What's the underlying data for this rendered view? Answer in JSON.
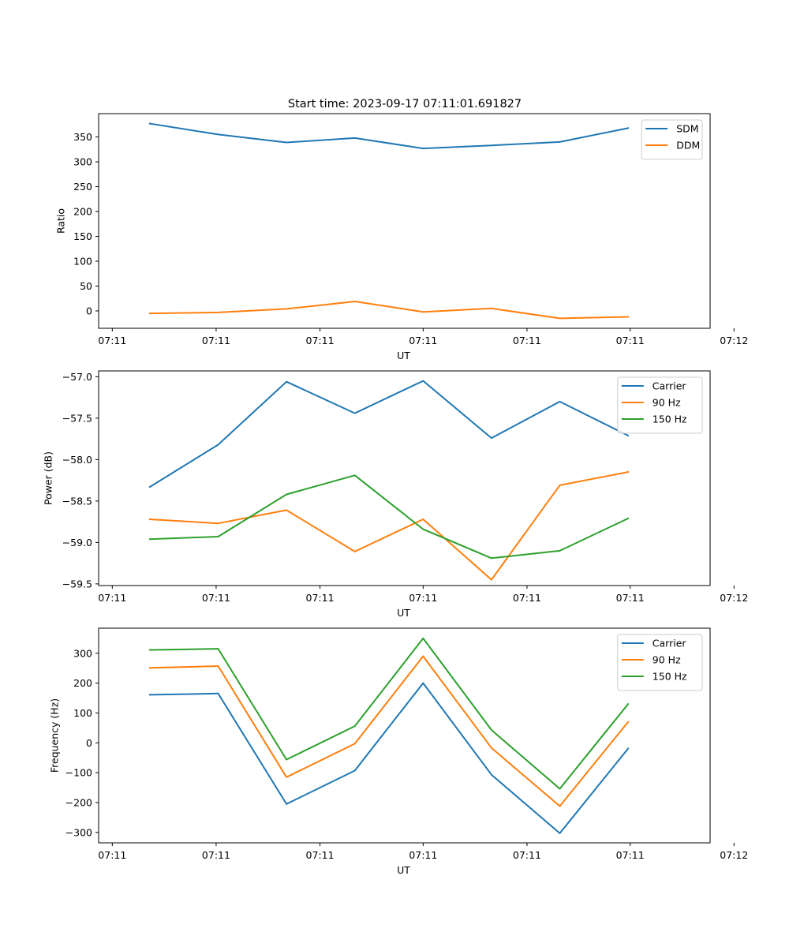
{
  "figure_title": "Start time: 2023-09-17 07:11:01.691827",
  "chart_data": [
    {
      "type": "line",
      "id": "ratio",
      "title": "Start time: 2023-09-17 07:11:01.691827",
      "xlabel": "UT",
      "ylabel": "Ratio",
      "x": [
        1,
        2,
        3,
        4,
        5,
        6,
        7,
        8
      ],
      "xlim": [
        0.25,
        9.2
      ],
      "xticks": [
        0.45,
        1.97,
        3.49,
        5.0,
        6.52,
        8.03,
        9.55
      ],
      "xtick_labels": [
        "07:11",
        "07:11",
        "07:11",
        "07:11",
        "07:11",
        "07:11",
        "07:12"
      ],
      "ylim": [
        -35,
        397
      ],
      "yticks": [
        0,
        50,
        100,
        150,
        200,
        250,
        300,
        350
      ],
      "ytick_labels": [
        "0",
        "50",
        "100",
        "150",
        "200",
        "250",
        "300",
        "350"
      ],
      "legend": "top-right",
      "series": [
        {
          "name": "SDM",
          "color": "#1f77b4",
          "values": [
            377,
            355,
            339,
            348,
            327,
            333,
            340,
            368
          ]
        },
        {
          "name": "DDM",
          "color": "#ff7f0e",
          "values": [
            -5,
            -3,
            4,
            19,
            -2,
            5,
            -15,
            -12
          ]
        }
      ]
    },
    {
      "type": "line",
      "id": "power",
      "title": "",
      "xlabel": "UT",
      "ylabel": "Power (dB)",
      "x": [
        1,
        2,
        3,
        4,
        5,
        6,
        7,
        8
      ],
      "xlim": [
        0.25,
        9.2
      ],
      "xticks": [
        0.45,
        1.97,
        3.49,
        5.0,
        6.52,
        8.03,
        9.55
      ],
      "xtick_labels": [
        "07:11",
        "07:11",
        "07:11",
        "07:11",
        "07:11",
        "07:11",
        "07:12"
      ],
      "ylim": [
        -59.52,
        -56.93
      ],
      "yticks": [
        -57.0,
        -57.5,
        -58.0,
        -58.5,
        -59.0,
        -59.5
      ],
      "ytick_labels": [
        "−57.0",
        "−57.5",
        "−58.0",
        "−58.5",
        "−59.0",
        "−59.5"
      ],
      "legend": "top-right",
      "series": [
        {
          "name": "Carrier",
          "color": "#1f77b4",
          "values": [
            -58.33,
            -57.82,
            -57.06,
            -57.44,
            -57.05,
            -57.74,
            -57.3,
            -57.71
          ]
        },
        {
          "name": "90 Hz",
          "color": "#ff7f0e",
          "values": [
            -58.72,
            -58.77,
            -58.61,
            -59.11,
            -58.72,
            -59.45,
            -58.31,
            -58.15
          ]
        },
        {
          "name": "150 Hz",
          "color": "#2ca02c",
          "values": [
            -58.96,
            -58.93,
            -58.42,
            -58.19,
            -58.84,
            -59.19,
            -59.1,
            -58.71
          ]
        }
      ]
    },
    {
      "type": "line",
      "id": "frequency",
      "title": "",
      "xlabel": "UT",
      "ylabel": "Frequency (Hz)",
      "x": [
        1,
        2,
        3,
        4,
        5,
        6,
        7,
        8
      ],
      "xlim": [
        0.25,
        9.2
      ],
      "xticks": [
        0.45,
        1.97,
        3.49,
        5.0,
        6.52,
        8.03,
        9.55
      ],
      "xtick_labels": [
        "07:11",
        "07:11",
        "07:11",
        "07:11",
        "07:11",
        "07:11",
        "07:12"
      ],
      "ylim": [
        -335,
        384
      ],
      "yticks": [
        300,
        200,
        100,
        0,
        -100,
        -200,
        -300
      ],
      "ytick_labels": [
        "300",
        "200",
        "100",
        "0",
        "−100",
        "−200",
        "−300"
      ],
      "legend": "top-right",
      "series": [
        {
          "name": "Carrier",
          "color": "#1f77b4",
          "values": [
            161,
            165,
            -205,
            -93,
            200,
            -107,
            -303,
            -19
          ]
        },
        {
          "name": "90 Hz",
          "color": "#ff7f0e",
          "values": [
            251,
            257,
            -115,
            -3,
            290,
            -17,
            -212,
            70
          ]
        },
        {
          "name": "150 Hz",
          "color": "#2ca02c",
          "values": [
            311,
            315,
            -56,
            56,
            350,
            43,
            -154,
            130
          ]
        }
      ]
    }
  ]
}
